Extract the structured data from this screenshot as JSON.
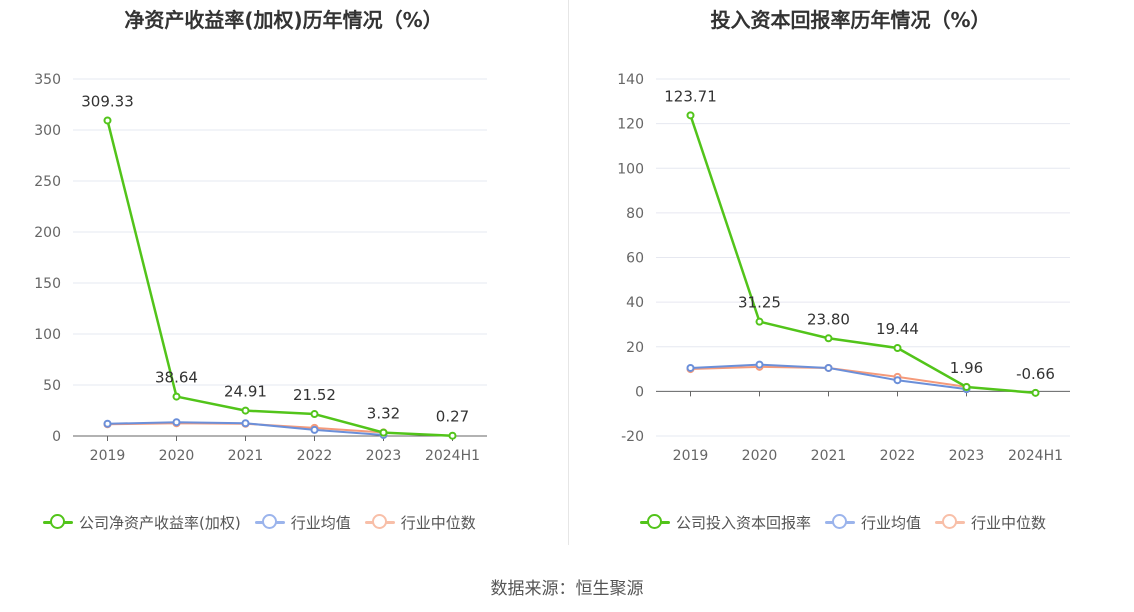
{
  "source_label": "数据来源：恒生聚源",
  "colors": {
    "company": "#52c41a",
    "avg": "#6b8fd9",
    "median": "#f59a7a",
    "grid": "#e6e8f0",
    "axis": "#666666",
    "label": "#666666",
    "value": "#333333"
  },
  "chart_data": [
    {
      "type": "line",
      "title": "净资产收益率(加权)历年情况（%）",
      "categories": [
        "2019",
        "2020",
        "2021",
        "2022",
        "2023",
        "2024H1"
      ],
      "ylim": [
        0,
        350
      ],
      "yticks": [
        0,
        50,
        100,
        150,
        200,
        250,
        300,
        350
      ],
      "grid": true,
      "legend_position": "bottom",
      "series": [
        {
          "name": "公司净资产收益率(加权)",
          "values": [
            309.33,
            38.64,
            24.91,
            21.52,
            3.32,
            0.27
          ],
          "labels": [
            "309.33",
            "38.64",
            "24.91",
            "21.52",
            "3.32",
            "0.27"
          ]
        },
        {
          "name": "行业均值",
          "values": [
            12,
            13.5,
            12.5,
            6,
            1,
            null
          ]
        },
        {
          "name": "行业中位数",
          "values": [
            11.5,
            12.5,
            12,
            8,
            3.5,
            null
          ]
        }
      ]
    },
    {
      "type": "line",
      "title": "投入资本回报率历年情况（%）",
      "categories": [
        "2019",
        "2020",
        "2021",
        "2022",
        "2023",
        "2024H1"
      ],
      "ylim": [
        -20,
        140
      ],
      "yticks": [
        -20,
        0,
        20,
        40,
        60,
        80,
        100,
        120,
        140
      ],
      "grid": true,
      "legend_position": "bottom",
      "series": [
        {
          "name": "公司投入资本回报率",
          "values": [
            123.71,
            31.25,
            23.8,
            19.44,
            1.96,
            -0.66
          ],
          "labels": [
            "123.71",
            "31.25",
            "23.80",
            "19.44",
            "1.96",
            "-0.66"
          ]
        },
        {
          "name": "行业均值",
          "values": [
            10.5,
            12,
            10.5,
            5,
            1,
            null
          ]
        },
        {
          "name": "行业中位数",
          "values": [
            10,
            11,
            10.5,
            6.5,
            2,
            null
          ]
        }
      ]
    }
  ]
}
